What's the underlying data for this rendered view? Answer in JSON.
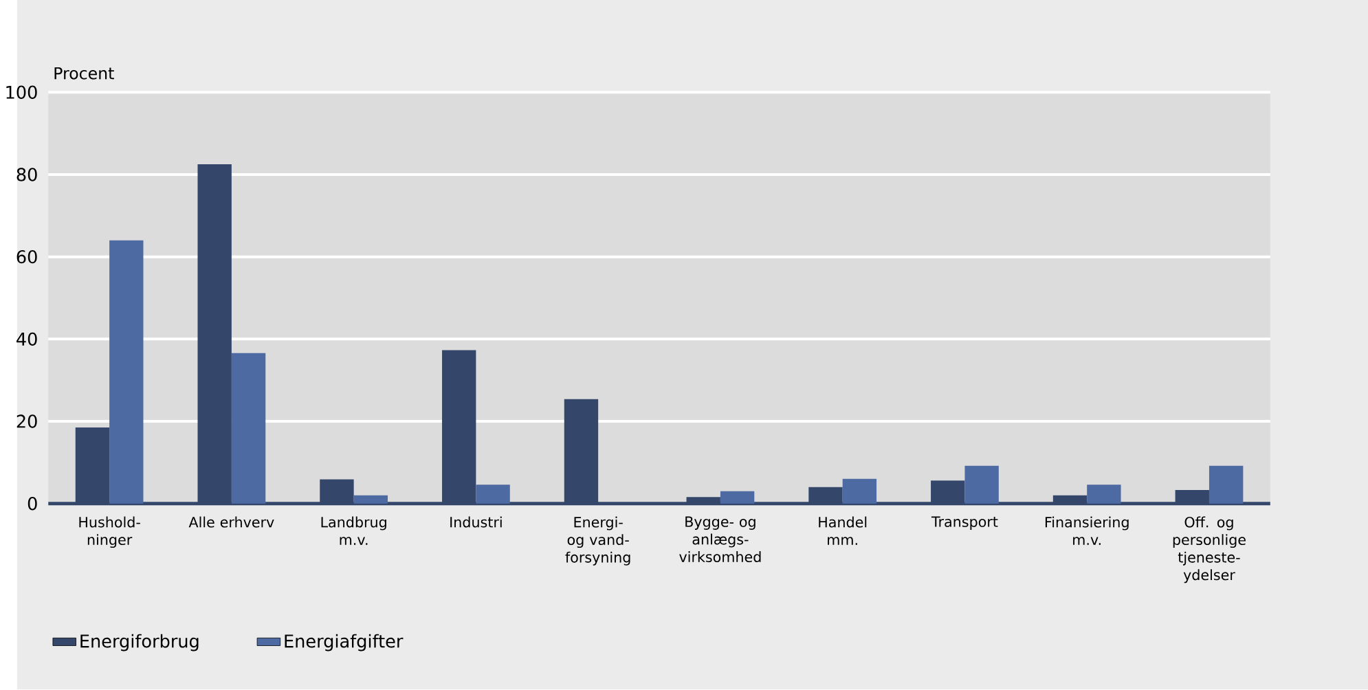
{
  "chart_data": {
    "type": "bar",
    "ylabel": "Procent",
    "categories": [
      "Hushold-ninger",
      "Alle erhverv",
      "Landbrug m.v.",
      "Industri",
      "Energi- og vand-forsyning",
      "Bygge- og anlægs-virksomhed",
      "Handel mm.",
      "Transport",
      "Finansiering m.v.",
      "Off. og personlige tjeneste-ydelser"
    ],
    "series": [
      {
        "name": "Energiforbrug",
        "color": "#34476b",
        "values": [
          18.5,
          82.5,
          5.9,
          37.3,
          25.4,
          1.6,
          4,
          5.6,
          2,
          3.3
        ]
      },
      {
        "name": "Energiafgifter",
        "color": "#4d6aa2",
        "values": [
          64,
          36.6,
          2,
          4.6,
          0,
          3,
          6,
          9.2,
          4.6,
          9.2
        ]
      }
    ],
    "ylim": [
      0,
      100
    ],
    "yticks": [
      0,
      20,
      40,
      60,
      80,
      100
    ],
    "grid": "y",
    "legend": "bottom left"
  }
}
